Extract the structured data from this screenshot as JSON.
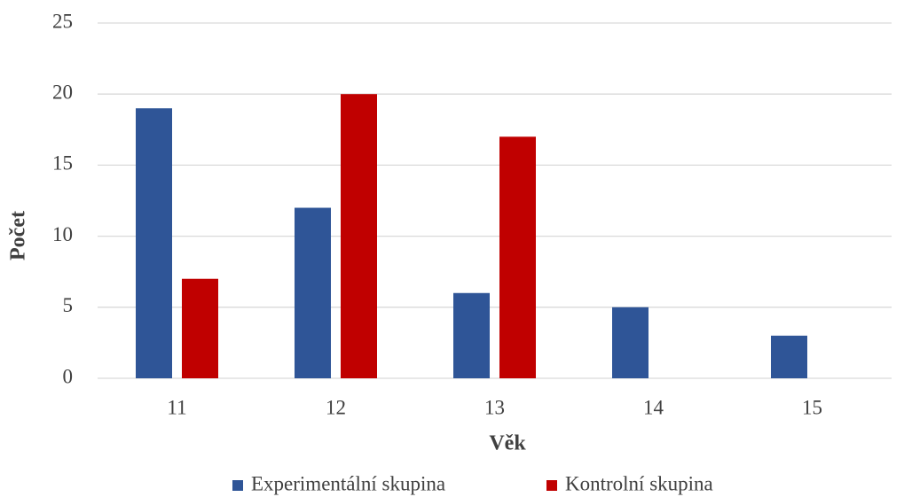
{
  "chart_data": {
    "type": "bar",
    "x_label": "Věk",
    "y_label": "Počet",
    "categories": [
      "11",
      "12",
      "13",
      "14",
      "15"
    ],
    "series": [
      {
        "name": "Experimentální skupina",
        "color": "#2f5597",
        "values": [
          19,
          12,
          6,
          5,
          3
        ]
      },
      {
        "name": "Kontrolní skupina",
        "color": "#c00000",
        "values": [
          7,
          20,
          17,
          0,
          0
        ]
      }
    ],
    "ylim": [
      0,
      25
    ],
    "yticks": [
      0,
      5,
      10,
      15,
      20,
      25
    ],
    "grid": true,
    "legend": "bottom"
  }
}
